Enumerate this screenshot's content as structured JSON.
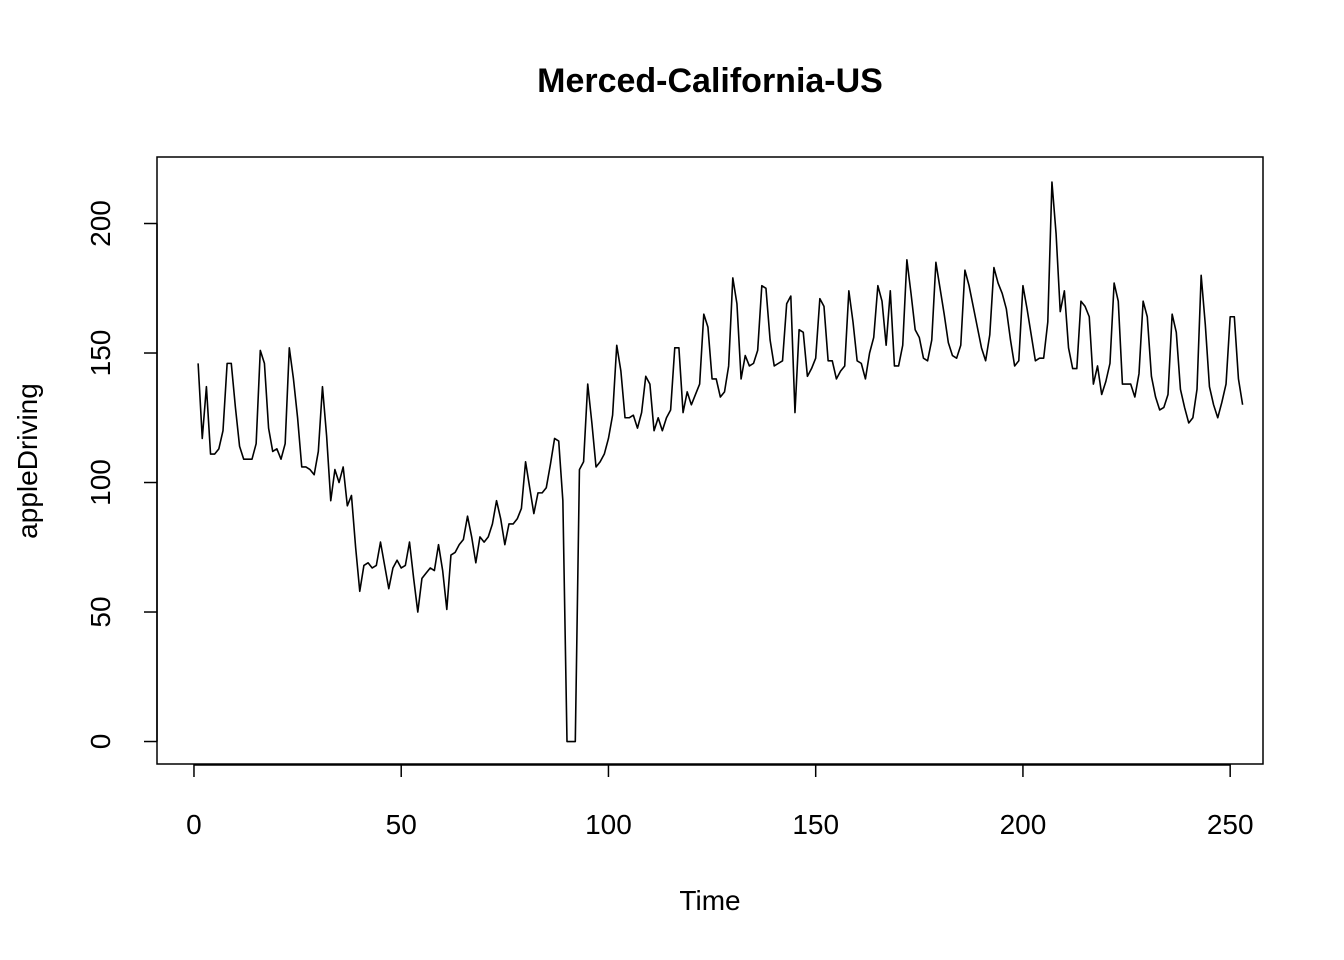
{
  "chart_data": {
    "type": "line",
    "title": "Merced-California-US",
    "xlabel": "Time",
    "ylabel": "appleDriving",
    "xlim": [
      -8.92,
      257.92
    ],
    "ylim": [
      -8.68,
      225.68
    ],
    "xticks": [
      0,
      50,
      100,
      150,
      200,
      250
    ],
    "yticks": [
      0,
      50,
      100,
      150,
      200
    ],
    "grid": false,
    "legend": "none",
    "line_color": "#000000",
    "x_start": 1,
    "values": [
      146,
      117,
      137,
      111,
      111,
      113,
      120,
      146,
      146,
      129,
      114,
      109,
      109,
      109,
      115,
      151,
      146,
      121,
      112,
      113,
      109,
      115,
      152,
      140,
      125,
      106,
      106,
      105,
      103,
      112,
      137,
      118,
      93,
      105,
      100,
      106,
      91,
      95,
      75,
      58,
      68,
      69,
      67,
      68,
      77,
      68,
      59,
      67,
      70,
      67,
      68,
      77,
      63,
      50,
      63,
      65,
      67,
      66,
      76,
      66,
      51,
      72,
      73,
      76,
      78,
      87,
      79,
      69,
      79,
      77,
      79,
      84,
      93,
      86,
      76,
      84,
      84,
      86,
      90,
      108,
      98,
      88,
      96,
      96,
      98,
      107,
      117,
      116,
      93,
      0,
      0,
      0,
      105,
      108,
      138,
      123,
      106,
      108,
      111,
      117,
      126,
      153,
      143,
      125,
      125,
      126,
      121,
      127,
      141,
      138,
      120,
      125,
      120,
      125,
      128,
      152,
      152,
      127,
      135,
      130,
      134,
      138,
      165,
      160,
      140,
      140,
      133,
      135,
      145,
      179,
      169,
      140,
      149,
      145,
      146,
      151,
      176,
      175,
      155,
      145,
      146,
      147,
      169,
      172,
      127,
      159,
      158,
      141,
      144,
      148,
      171,
      168,
      147,
      147,
      140,
      143,
      145,
      174,
      162,
      147,
      146,
      140,
      150,
      156,
      176,
      170,
      153,
      174,
      145,
      145,
      153,
      186,
      173,
      159,
      156,
      148,
      147,
      155,
      185,
      175,
      165,
      154,
      149,
      148,
      153,
      182,
      176,
      168,
      160,
      152,
      147,
      157,
      183,
      177,
      173,
      167,
      155,
      145,
      147,
      176,
      167,
      157,
      147,
      148,
      148,
      162,
      216,
      196,
      166,
      174,
      152,
      144,
      144,
      170,
      168,
      164,
      138,
      145,
      134,
      139,
      146,
      177,
      170,
      138,
      138,
      138,
      133,
      142,
      170,
      164,
      141,
      133,
      128,
      129,
      134,
      165,
      158,
      136,
      129,
      123,
      125,
      136,
      180,
      161,
      137,
      130,
      125,
      131,
      138,
      164,
      164,
      140,
      130
    ]
  }
}
